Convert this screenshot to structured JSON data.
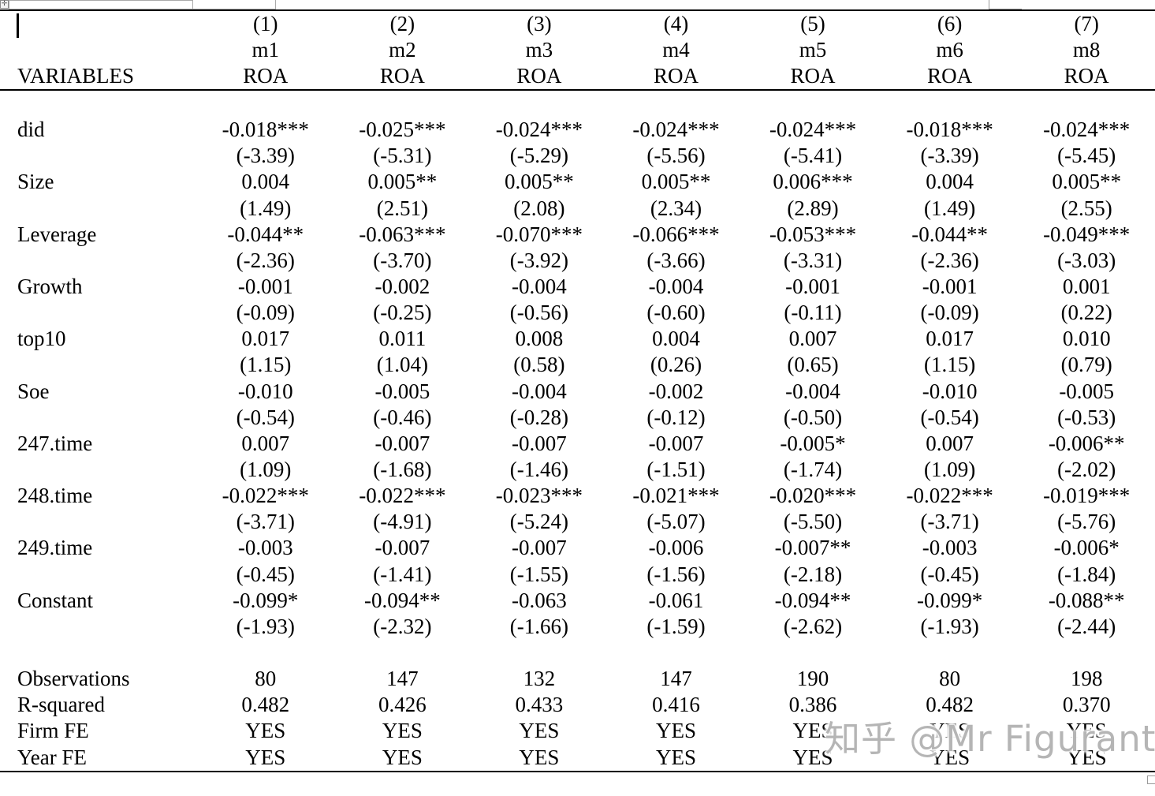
{
  "header": {
    "variables_label": "VARIABLES",
    "columns": [
      {
        "num": "(1)",
        "model": "m1",
        "dep": "ROA"
      },
      {
        "num": "(2)",
        "model": "m2",
        "dep": "ROA"
      },
      {
        "num": "(3)",
        "model": "m3",
        "dep": "ROA"
      },
      {
        "num": "(4)",
        "model": "m4",
        "dep": "ROA"
      },
      {
        "num": "(5)",
        "model": "m5",
        "dep": "ROA"
      },
      {
        "num": "(6)",
        "model": "m6",
        "dep": "ROA"
      },
      {
        "num": "(7)",
        "model": "m8",
        "dep": "ROA"
      }
    ]
  },
  "table": {
    "rows": [
      {
        "kind": "spacer",
        "label": "",
        "cells": [
          "",
          "",
          "",
          "",
          "",
          "",
          ""
        ]
      },
      {
        "kind": "coef",
        "label": "did",
        "cells": [
          "-0.018***",
          "-0.025***",
          "-0.024***",
          "-0.024***",
          "-0.024***",
          "-0.018***",
          "-0.024***"
        ]
      },
      {
        "kind": "tstat",
        "label": "",
        "cells": [
          "(-3.39)",
          "(-5.31)",
          "(-5.29)",
          "(-5.56)",
          "(-5.41)",
          "(-3.39)",
          "(-5.45)"
        ]
      },
      {
        "kind": "coef",
        "label": "Size",
        "cells": [
          "0.004",
          "0.005**",
          "0.005**",
          "0.005**",
          "0.006***",
          "0.004",
          "0.005**"
        ]
      },
      {
        "kind": "tstat",
        "label": "",
        "cells": [
          "(1.49)",
          "(2.51)",
          "(2.08)",
          "(2.34)",
          "(2.89)",
          "(1.49)",
          "(2.55)"
        ]
      },
      {
        "kind": "coef",
        "label": "Leverage",
        "cells": [
          "-0.044**",
          "-0.063***",
          "-0.070***",
          "-0.066***",
          "-0.053***",
          "-0.044**",
          "-0.049***"
        ]
      },
      {
        "kind": "tstat",
        "label": "",
        "cells": [
          "(-2.36)",
          "(-3.70)",
          "(-3.92)",
          "(-3.66)",
          "(-3.31)",
          "(-2.36)",
          "(-3.03)"
        ]
      },
      {
        "kind": "coef",
        "label": "Growth",
        "cells": [
          "-0.001",
          "-0.002",
          "-0.004",
          "-0.004",
          "-0.001",
          "-0.001",
          "0.001"
        ]
      },
      {
        "kind": "tstat",
        "label": "",
        "cells": [
          "(-0.09)",
          "(-0.25)",
          "(-0.56)",
          "(-0.60)",
          "(-0.11)",
          "(-0.09)",
          "(0.22)"
        ]
      },
      {
        "kind": "coef",
        "label": "top10",
        "cells": [
          "0.017",
          "0.011",
          "0.008",
          "0.004",
          "0.007",
          "0.017",
          "0.010"
        ]
      },
      {
        "kind": "tstat",
        "label": "",
        "cells": [
          "(1.15)",
          "(1.04)",
          "(0.58)",
          "(0.26)",
          "(0.65)",
          "(1.15)",
          "(0.79)"
        ]
      },
      {
        "kind": "coef",
        "label": "Soe",
        "cells": [
          "-0.010",
          "-0.005",
          "-0.004",
          "-0.002",
          "-0.004",
          "-0.010",
          "-0.005"
        ]
      },
      {
        "kind": "tstat",
        "label": "",
        "cells": [
          "(-0.54)",
          "(-0.46)",
          "(-0.28)",
          "(-0.12)",
          "(-0.50)",
          "(-0.54)",
          "(-0.53)"
        ]
      },
      {
        "kind": "coef",
        "label": "247.time",
        "cells": [
          "0.007",
          "-0.007",
          "-0.007",
          "-0.007",
          "-0.005*",
          "0.007",
          "-0.006**"
        ]
      },
      {
        "kind": "tstat",
        "label": "",
        "cells": [
          "(1.09)",
          "(-1.68)",
          "(-1.46)",
          "(-1.51)",
          "(-1.74)",
          "(1.09)",
          "(-2.02)"
        ]
      },
      {
        "kind": "coef",
        "label": "248.time",
        "cells": [
          "-0.022***",
          "-0.022***",
          "-0.023***",
          "-0.021***",
          "-0.020***",
          "-0.022***",
          "-0.019***"
        ]
      },
      {
        "kind": "tstat",
        "label": "",
        "cells": [
          "(-3.71)",
          "(-4.91)",
          "(-5.24)",
          "(-5.07)",
          "(-5.50)",
          "(-3.71)",
          "(-5.76)"
        ]
      },
      {
        "kind": "coef",
        "label": "249.time",
        "cells": [
          "-0.003",
          "-0.007",
          "-0.007",
          "-0.006",
          "-0.007**",
          "-0.003",
          "-0.006*"
        ]
      },
      {
        "kind": "tstat",
        "label": "",
        "cells": [
          "(-0.45)",
          "(-1.41)",
          "(-1.55)",
          "(-1.56)",
          "(-2.18)",
          "(-0.45)",
          "(-1.84)"
        ]
      },
      {
        "kind": "coef",
        "label": "Constant",
        "cells": [
          "-0.099*",
          "-0.094**",
          "-0.063",
          "-0.061",
          "-0.094**",
          "-0.099*",
          "-0.088**"
        ]
      },
      {
        "kind": "tstat",
        "label": "",
        "cells": [
          "(-1.93)",
          "(-2.32)",
          "(-1.66)",
          "(-1.59)",
          "(-2.62)",
          "(-1.93)",
          "(-2.44)"
        ]
      },
      {
        "kind": "spacer",
        "label": "",
        "cells": [
          "",
          "",
          "",
          "",
          "",
          "",
          ""
        ]
      },
      {
        "kind": "stat",
        "label": "Observations",
        "cells": [
          "80",
          "147",
          "132",
          "147",
          "190",
          "80",
          "198"
        ]
      },
      {
        "kind": "stat",
        "label": "R-squared",
        "cells": [
          "0.482",
          "0.426",
          "0.433",
          "0.416",
          "0.386",
          "0.482",
          "0.370"
        ]
      },
      {
        "kind": "stat",
        "label": "Firm FE",
        "cells": [
          "YES",
          "YES",
          "YES",
          "YES",
          "YES",
          "YES",
          "YES"
        ]
      },
      {
        "kind": "stat",
        "label": "Year FE",
        "cells": [
          "YES",
          "YES",
          "YES",
          "YES",
          "YES",
          "YES",
          "YES"
        ]
      }
    ]
  },
  "watermark": {
    "text": "知乎 @Mr Figurant",
    "color": "#b5b5b5"
  },
  "artifacts": {
    "move_handle_glyph": "✛"
  }
}
